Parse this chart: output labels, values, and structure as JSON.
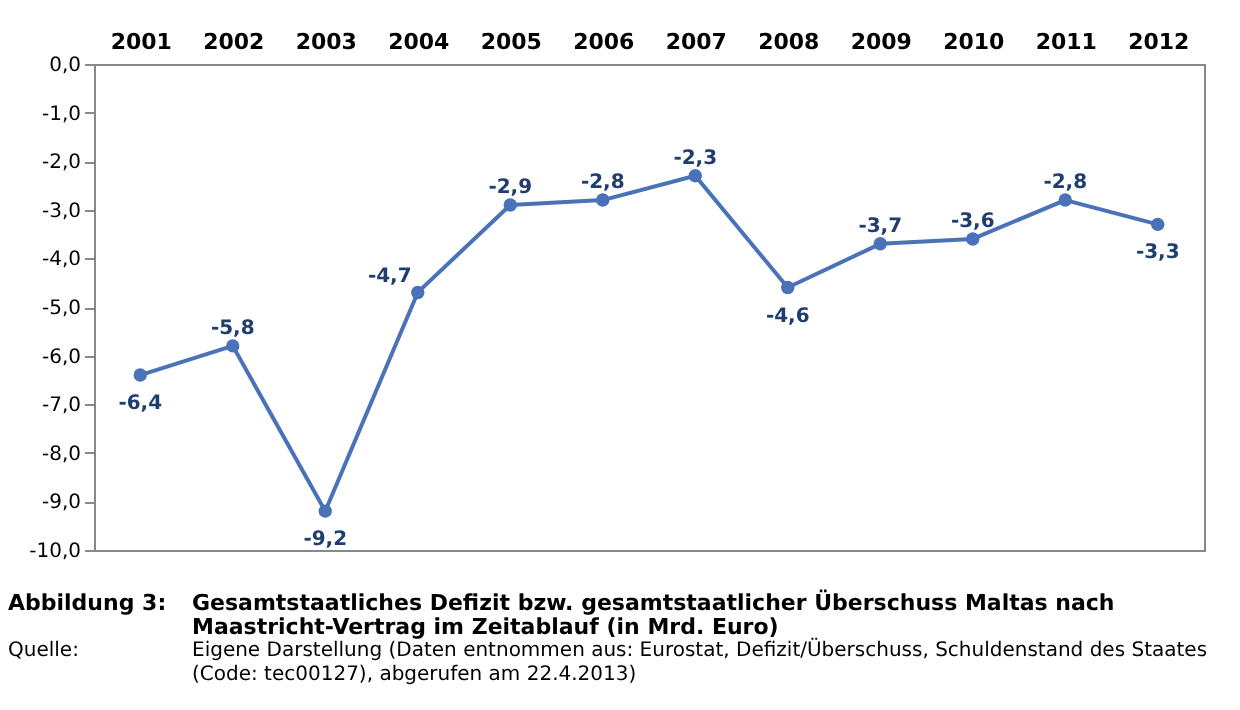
{
  "chart_data": {
    "type": "line",
    "title": "Gesamtstaatliches Defizit bzw. gesamtstaatlicher Überschuss Maltas nach Maastricht-Vertrag im Zeitablauf (in Mrd. Euro)",
    "annotations": [
      "Abbildung 3:",
      "Quelle:",
      "Eigene Darstellung (Daten entnommen aus: Eurostat, Defizit/Überschuss, Schuldenstand des Staates (Code: tec00127), abgerufen am 22.4.2013)"
    ],
    "categories": [
      "2001",
      "2002",
      "2003",
      "2004",
      "2005",
      "2006",
      "2007",
      "2008",
      "2009",
      "2010",
      "2011",
      "2012"
    ],
    "series": [
      {
        "color": "#4a72b8",
        "values": [
          -6.4,
          -5.8,
          -9.2,
          -4.7,
          -2.9,
          -2.8,
          -2.3,
          -4.6,
          -3.7,
          -3.6,
          -2.8,
          -3.3
        ],
        "value_labels": [
          "-6,4",
          "-5,8",
          "-9,2",
          "-4,7",
          "-2,9",
          "-2,8",
          "-2,3",
          "-4,6",
          "-3,7",
          "-3,6",
          "-2,8",
          "-3,3"
        ]
      }
    ],
    "ylim": [
      -10,
      0
    ],
    "yticks": [
      {
        "value": 0,
        "label": "0,0"
      },
      {
        "value": -1,
        "label": "-1,0"
      },
      {
        "value": -2,
        "label": "-2,0"
      },
      {
        "value": -3,
        "label": "-3,0"
      },
      {
        "value": -4,
        "label": "-4,0"
      },
      {
        "value": -5,
        "label": "-5,0"
      },
      {
        "value": -6,
        "label": "-6,0"
      },
      {
        "value": -7,
        "label": "-7,0"
      },
      {
        "value": -8,
        "label": "-8,0"
      },
      {
        "value": -9,
        "label": "-9,0"
      },
      {
        "value": -10,
        "label": "-10,0"
      }
    ],
    "marker": "circle",
    "line_style": "solid",
    "grid": false
  }
}
